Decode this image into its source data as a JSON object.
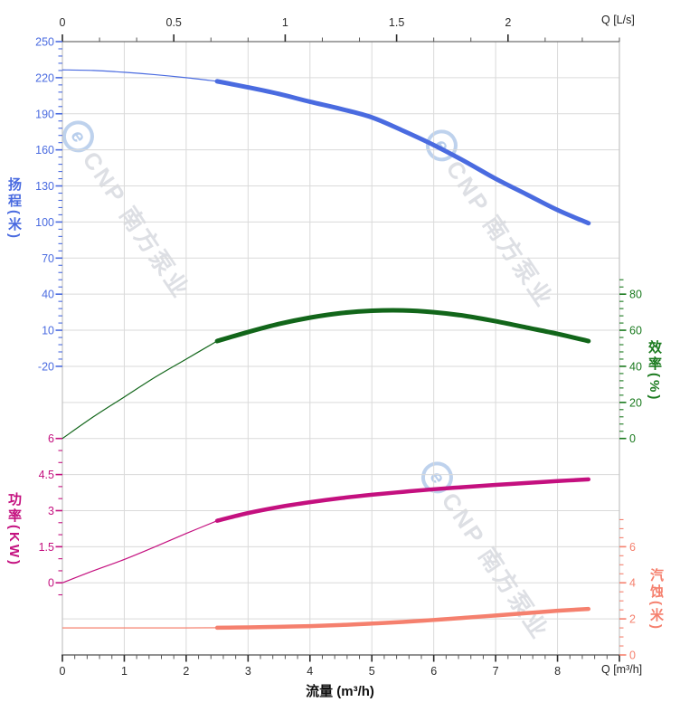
{
  "watermark": {
    "logo_letter": "e",
    "text": "CNP 南方泵业"
  },
  "chart_data": {
    "type": "line",
    "title": "",
    "legend": "none",
    "grid": {
      "color": "#dadada",
      "border_light": "#c3c3c3",
      "border_dark": "#6f6f6f",
      "grid_on": true
    },
    "x_axis_bottom": {
      "label": "流量 (m³/h)",
      "corner_label": "Q [m³/h]",
      "range": [
        0,
        9
      ],
      "major_ticks": [
        0,
        1,
        2,
        3,
        4,
        5,
        6,
        7,
        8
      ],
      "unlabeled_major_ticks": [
        9
      ],
      "minor_step": 0.2,
      "color": "#2b2b2b"
    },
    "x_axis_top": {
      "corner_label": "Q [L/s]",
      "range": [
        0,
        2.5
      ],
      "major_ticks": [
        0,
        0.5,
        1,
        1.5,
        2
      ],
      "unlabeled_major_ticks": [],
      "minor_step": 0.1666667,
      "color": "#2b2b2b",
      "unit_to_bottom_factor": 3.6
    },
    "y_axes": [
      {
        "id": "head",
        "side": "left",
        "label": "扬程(米)",
        "color": "#4a6be0",
        "range": [
          -20,
          250
        ],
        "major_ticks": [
          250,
          220,
          190,
          160,
          130,
          100,
          70,
          40,
          10,
          -20
        ],
        "minor_step": 6,
        "minor_range": [
          -20,
          250
        ]
      },
      {
        "id": "power",
        "side": "left",
        "label": "功率(KW)",
        "color": "#c4107f",
        "range": [
          0,
          6
        ],
        "major_ticks": [
          6,
          4.5,
          3,
          1.5,
          0
        ],
        "minor_step": 0.5,
        "minor_range": [
          -0.5,
          6
        ]
      },
      {
        "id": "eff",
        "side": "right",
        "label": "效率(%)",
        "color": "#1a7a1e",
        "range": [
          0,
          80
        ],
        "major_ticks": [
          80,
          60,
          40,
          20,
          0
        ],
        "minor_step": 4,
        "minor_range": [
          0,
          88
        ]
      },
      {
        "id": "npsh",
        "side": "right",
        "label": "汽蚀(米)",
        "color": "#f5806e",
        "range": [
          0,
          6
        ],
        "major_ticks": [
          6,
          4,
          2,
          0
        ],
        "minor_step": 0.5,
        "minor_range": [
          0,
          7.5
        ]
      }
    ],
    "series": [
      {
        "id": "head",
        "name": "扬程",
        "axis": "head",
        "color": "#4a6be0",
        "split_q": 2.5,
        "thin_width": 1.2,
        "thick_width": 5,
        "points": [
          [
            0,
            226.5
          ],
          [
            0.5,
            226
          ],
          [
            1,
            224.5
          ],
          [
            1.5,
            222.5
          ],
          [
            2,
            220
          ],
          [
            2.5,
            217
          ],
          [
            3,
            212
          ],
          [
            3.5,
            206.5
          ],
          [
            4,
            200
          ],
          [
            4.5,
            194
          ],
          [
            5,
            187
          ],
          [
            5.5,
            176
          ],
          [
            6,
            164
          ],
          [
            6.5,
            150.5
          ],
          [
            7,
            136
          ],
          [
            7.5,
            123
          ],
          [
            8,
            110
          ],
          [
            8.5,
            99
          ]
        ]
      },
      {
        "id": "efficiency",
        "name": "效率",
        "axis": "eff",
        "color": "#12661a",
        "split_q": 2.5,
        "thin_width": 1.2,
        "thick_width": 5,
        "points": [
          [
            0,
            0
          ],
          [
            0.5,
            12
          ],
          [
            1,
            23
          ],
          [
            1.5,
            34
          ],
          [
            2,
            44
          ],
          [
            2.5,
            54
          ],
          [
            3,
            59
          ],
          [
            3.5,
            63.5
          ],
          [
            4,
            67
          ],
          [
            4.5,
            69.5
          ],
          [
            5,
            70.8
          ],
          [
            5.5,
            71
          ],
          [
            6,
            70
          ],
          [
            6.5,
            68
          ],
          [
            7,
            65
          ],
          [
            7.5,
            61.5
          ],
          [
            8,
            58
          ],
          [
            8.5,
            54
          ]
        ]
      },
      {
        "id": "power",
        "name": "功率",
        "axis": "power",
        "color": "#c4107f",
        "split_q": 2.5,
        "thin_width": 1.2,
        "thick_width": 4.5,
        "points": [
          [
            0,
            0
          ],
          [
            0.5,
            0.5
          ],
          [
            1,
            0.97
          ],
          [
            1.5,
            1.5
          ],
          [
            2,
            2.05
          ],
          [
            2.5,
            2.58
          ],
          [
            3,
            2.9
          ],
          [
            3.5,
            3.15
          ],
          [
            4,
            3.35
          ],
          [
            4.5,
            3.52
          ],
          [
            5,
            3.66
          ],
          [
            5.5,
            3.78
          ],
          [
            6,
            3.89
          ],
          [
            6.5,
            3.98
          ],
          [
            7,
            4.07
          ],
          [
            7.5,
            4.15
          ],
          [
            8,
            4.23
          ],
          [
            8.5,
            4.3
          ]
        ]
      },
      {
        "id": "npsh",
        "name": "汽蚀",
        "axis": "npsh",
        "color": "#f5806e",
        "split_q": 2.5,
        "thin_width": 1.8,
        "thick_width": 4.5,
        "points": [
          [
            0,
            1.5
          ],
          [
            0.5,
            1.5
          ],
          [
            1,
            1.5
          ],
          [
            1.5,
            1.5
          ],
          [
            2,
            1.5
          ],
          [
            2.5,
            1.51
          ],
          [
            3,
            1.53
          ],
          [
            3.5,
            1.56
          ],
          [
            4,
            1.6
          ],
          [
            4.5,
            1.66
          ],
          [
            5,
            1.74
          ],
          [
            5.5,
            1.83
          ],
          [
            6,
            1.94
          ],
          [
            6.5,
            2.06
          ],
          [
            7,
            2.19
          ],
          [
            7.5,
            2.32
          ],
          [
            8,
            2.45
          ],
          [
            8.5,
            2.55
          ]
        ]
      }
    ]
  }
}
